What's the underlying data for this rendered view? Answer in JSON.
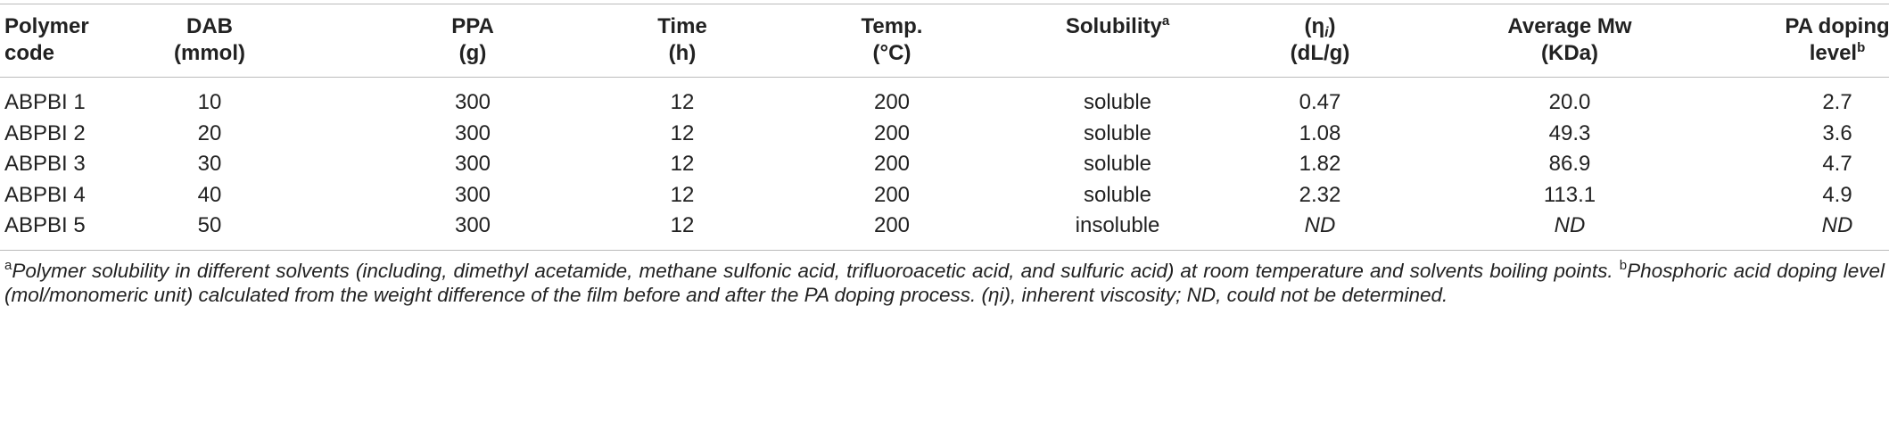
{
  "table": {
    "columns": [
      {
        "line1": "Polymer",
        "line2": "code"
      },
      {
        "line1": "DAB",
        "line2": "(mmol)"
      },
      {
        "line1": "PPA",
        "line2": "(g)"
      },
      {
        "line1": "Time",
        "line2": "(h)"
      },
      {
        "line1": "Temp.",
        "line2": "(°C)"
      },
      {
        "line1": "Solubility",
        "sup": "a"
      },
      {
        "line1": "(η",
        "sub": "i",
        "close": ")",
        "line2": "(dL/g)"
      },
      {
        "line1": "Average Mw",
        "line2": "(KDa)"
      },
      {
        "line1": "PA doping",
        "line2": "level",
        "sup": "b"
      }
    ],
    "rows": [
      [
        "ABPBI 1",
        "10",
        "300",
        "12",
        "200",
        "soluble",
        "0.47",
        "20.0",
        "2.7"
      ],
      [
        "ABPBI 2",
        "20",
        "300",
        "12",
        "200",
        "soluble",
        "1.08",
        "49.3",
        "3.6"
      ],
      [
        "ABPBI 3",
        "30",
        "300",
        "12",
        "200",
        "soluble",
        "1.82",
        "86.9",
        "4.7"
      ],
      [
        "ABPBI 4",
        "40",
        "300",
        "12",
        "200",
        "soluble",
        "2.32",
        "113.1",
        "4.9"
      ],
      [
        "ABPBI 5",
        "50",
        "300",
        "12",
        "200",
        "insoluble",
        "ND",
        "ND",
        "ND"
      ]
    ],
    "italic_value": "ND"
  },
  "footnote": {
    "a_mark": "a",
    "a_text": "Polymer solubility in different solvents (including, dimethyl acetamide, methane sulfonic acid, trifluoroacetic acid, and sulfuric acid) at room temperature and solvents boiling points. ",
    "b_mark": "b",
    "b_text": "Phosphoric acid doping level (mol/monomeric unit) calculated from the weight difference of the film before and after the PA doping process. (ηi), inherent viscosity; ND, could not be determined."
  }
}
